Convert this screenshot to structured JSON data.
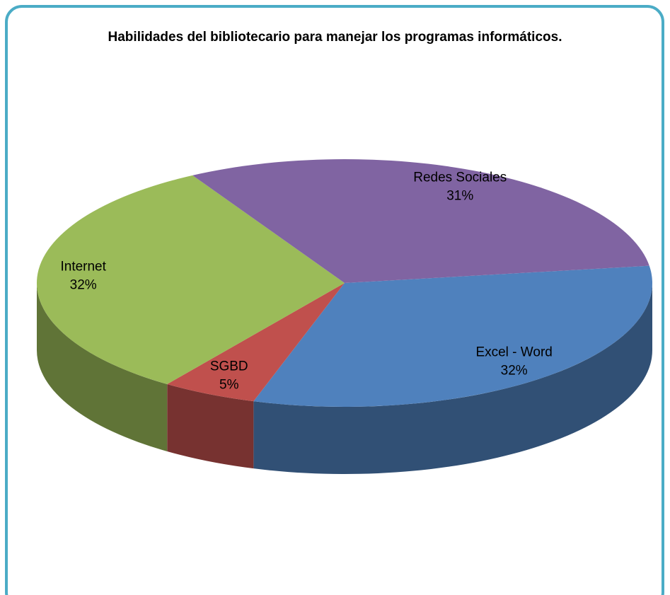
{
  "chart_data": {
    "type": "pie",
    "title": "Habilidades del bibliotecario para manejar los programas informáticos.",
    "categories": [
      "Excel - Word",
      "SGBD",
      "Internet",
      "Redes Sociales"
    ],
    "values": [
      32,
      5,
      32,
      31
    ],
    "value_labels": [
      "32%",
      "5%",
      "32%",
      "31%"
    ],
    "colors": [
      "#4f81bd",
      "#c0504d",
      "#9bbb59",
      "#8064a2"
    ]
  }
}
